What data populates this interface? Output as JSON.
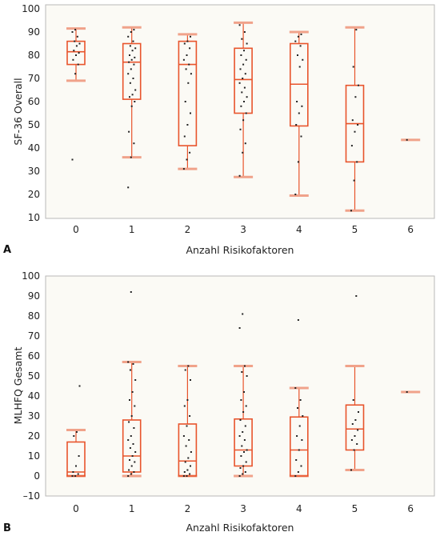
{
  "chart_data": [
    {
      "panel": "A",
      "type": "box",
      "xlabel": "Anzahl Risikofaktoren",
      "ylabel": "SF-36 Overall",
      "categories": [
        "0",
        "1",
        "2",
        "3",
        "4",
        "5",
        "6"
      ],
      "ylim": [
        10,
        100
      ],
      "yticks": [
        "10",
        "20",
        "30",
        "40",
        "50",
        "60",
        "70",
        "80",
        "90",
        "100"
      ],
      "colors": {
        "box": "#e8542c",
        "cap": "#f0a28a",
        "points": "#222222",
        "background": "#fbfaf5"
      },
      "boxes": [
        {
          "category": "0",
          "whisker_low": 69,
          "q1": 76,
          "median": 81.5,
          "q3": 86,
          "whisker_high": 91.5,
          "points": [
            35,
            72,
            76,
            78,
            80,
            81,
            82,
            84,
            85,
            86,
            88,
            90,
            91
          ]
        },
        {
          "category": "1",
          "whisker_low": 36,
          "q1": 61,
          "median": 77,
          "q3": 85,
          "whisker_high": 92,
          "points": [
            23,
            36,
            42,
            47,
            58,
            60,
            62,
            63,
            65,
            68,
            70,
            72,
            74,
            76,
            77,
            78,
            79,
            80,
            82,
            83,
            84,
            86,
            88,
            90,
            91
          ]
        },
        {
          "category": "2",
          "whisker_low": 31,
          "q1": 41,
          "median": 76,
          "q3": 86,
          "whisker_high": 89,
          "points": [
            31,
            35,
            38,
            45,
            50,
            55,
            60,
            68,
            72,
            74,
            76,
            78,
            80,
            83,
            85,
            86,
            88
          ]
        },
        {
          "category": "3",
          "whisker_low": 27.5,
          "q1": 55,
          "median": 69.5,
          "q3": 83,
          "whisker_high": 94,
          "points": [
            28,
            38,
            42,
            48,
            52,
            55,
            58,
            60,
            62,
            64,
            66,
            68,
            70,
            72,
            74,
            76,
            78,
            80,
            82,
            85,
            87,
            90,
            93
          ]
        },
        {
          "category": "4",
          "whisker_low": 19.5,
          "q1": 49.5,
          "median": 67.5,
          "q3": 85,
          "whisker_high": 90,
          "points": [
            20,
            34,
            45,
            50,
            55,
            58,
            60,
            75,
            78,
            80,
            84,
            86,
            88,
            89
          ]
        },
        {
          "category": "5",
          "whisker_low": 13,
          "q1": 34,
          "median": 50.5,
          "q3": 67,
          "whisker_high": 92,
          "points": [
            13,
            26,
            34,
            41,
            47,
            50,
            52,
            62,
            67,
            75,
            91
          ]
        },
        {
          "category": "6",
          "whisker_low": 43.5,
          "q1": 43.5,
          "median": 43.5,
          "q3": 43.5,
          "whisker_high": 43.5,
          "points": [
            43.5
          ]
        }
      ]
    },
    {
      "panel": "B",
      "type": "box",
      "xlabel": "Anzahl Risikofaktoren",
      "ylabel": "MLHFQ Gesamt",
      "categories": [
        "0",
        "1",
        "2",
        "3",
        "4",
        "5",
        "6"
      ],
      "ylim": [
        -10,
        100
      ],
      "yticks": [
        "–10",
        "0",
        "10",
        "20",
        "30",
        "40",
        "50",
        "60",
        "70",
        "80",
        "90",
        "100"
      ],
      "colors": {
        "box": "#e8542c",
        "cap": "#f0a28a",
        "points": "#222222",
        "background": "#fbfaf5"
      },
      "boxes": [
        {
          "category": "0",
          "whisker_low": 0,
          "q1": 0,
          "median": 2,
          "q3": 17,
          "whisker_high": 23,
          "points": [
            0,
            0,
            1,
            2,
            5,
            10,
            20,
            22,
            45
          ]
        },
        {
          "category": "1",
          "whisker_low": 0,
          "q1": 2,
          "median": 10,
          "q3": 28,
          "whisker_high": 57,
          "points": [
            0,
            1,
            2,
            3,
            5,
            7,
            8,
            10,
            12,
            14,
            16,
            18,
            20,
            24,
            27,
            30,
            35,
            38,
            42,
            48,
            53,
            56,
            57,
            92
          ]
        },
        {
          "category": "2",
          "whisker_low": 0,
          "q1": 0,
          "median": 7.5,
          "q3": 26,
          "whisker_high": 55,
          "points": [
            0,
            0,
            1,
            2,
            3,
            5,
            7,
            9,
            12,
            15,
            18,
            20,
            25,
            30,
            35,
            38,
            48,
            53,
            55
          ]
        },
        {
          "category": "3",
          "whisker_low": 0,
          "q1": 5,
          "median": 13,
          "q3": 28.5,
          "whisker_high": 55,
          "points": [
            0,
            1,
            2,
            4,
            5,
            7,
            10,
            12,
            13,
            15,
            18,
            20,
            22,
            25,
            28,
            32,
            35,
            38,
            42,
            50,
            52,
            55,
            74,
            81
          ]
        },
        {
          "category": "4",
          "whisker_low": 0,
          "q1": 0,
          "median": 13,
          "q3": 29.5,
          "whisker_high": 44,
          "points": [
            0,
            2,
            5,
            8,
            13,
            18,
            20,
            25,
            30,
            34,
            38,
            44,
            78
          ]
        },
        {
          "category": "5",
          "whisker_low": 3,
          "q1": 13,
          "median": 23.5,
          "q3": 35.5,
          "whisker_high": 55,
          "points": [
            3,
            13,
            16,
            18,
            20,
            23,
            26,
            28,
            32,
            38,
            90
          ]
        },
        {
          "category": "6",
          "whisker_low": 42,
          "q1": 42,
          "median": 42,
          "q3": 42,
          "whisker_high": 42,
          "points": [
            42
          ]
        }
      ]
    }
  ]
}
